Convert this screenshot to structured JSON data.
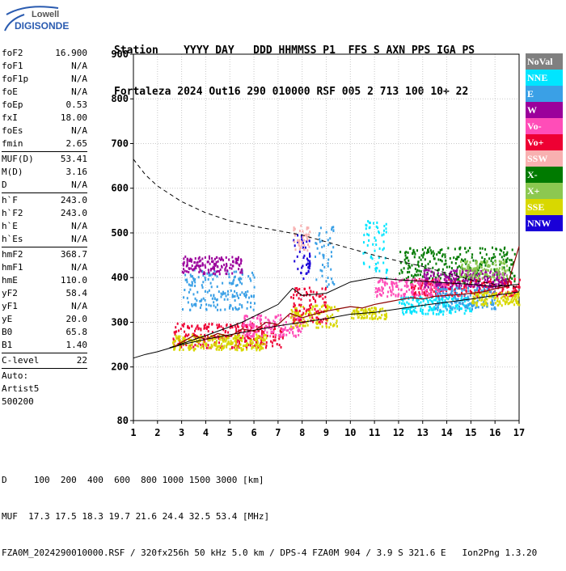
{
  "logo": {
    "line1": "Lowell",
    "line2": "DIGISONDE"
  },
  "header": {
    "row1": "Station    YYYY DAY   DDD HHMMSS P1  FFS S AXN PPS IGA PS",
    "row2": "Fortaleza 2024 Out16 290 010000 RSF 005 2 713 100 10+ 22"
  },
  "params": [
    {
      "k": "foF2",
      "v": "16.900"
    },
    {
      "k": "foF1",
      "v": "N/A"
    },
    {
      "k": "foF1p",
      "v": "N/A"
    },
    {
      "k": "foE",
      "v": "N/A"
    },
    {
      "k": "foEp",
      "v": "0.53"
    },
    {
      "k": "fxI",
      "v": "18.00"
    },
    {
      "k": "foEs",
      "v": "N/A"
    },
    {
      "k": "fmin",
      "v": "2.65"
    },
    {
      "sep": true
    },
    {
      "k": "MUF(D)",
      "v": "53.41"
    },
    {
      "k": "M(D)",
      "v": "3.16"
    },
    {
      "k": "D",
      "v": "N/A"
    },
    {
      "sep": true
    },
    {
      "k": "h`F",
      "v": "243.0"
    },
    {
      "k": "h`F2",
      "v": "243.0"
    },
    {
      "k": "h`E",
      "v": "N/A"
    },
    {
      "k": "h`Es",
      "v": "N/A"
    },
    {
      "sep": true
    },
    {
      "k": "hmF2",
      "v": "368.7"
    },
    {
      "k": "hmF1",
      "v": "N/A"
    },
    {
      "k": "hmE",
      "v": "110.0"
    },
    {
      "k": "yF2",
      "v": "58.4"
    },
    {
      "k": "yF1",
      "v": "N/A"
    },
    {
      "k": "yE",
      "v": "20.0"
    },
    {
      "k": "B0",
      "v": "65.8"
    },
    {
      "k": "B1",
      "v": "1.40"
    },
    {
      "sep": true
    },
    {
      "k": "C-level",
      "v": "22"
    },
    {
      "sep": true
    },
    {
      "plain": "Auto:"
    },
    {
      "plain": "Artist5"
    },
    {
      "plain": "500200"
    }
  ],
  "legend": [
    {
      "label": "NoVal",
      "color": "#808080"
    },
    {
      "label": "NNE",
      "color": "#00e5ff"
    },
    {
      "label": "E",
      "color": "#3aa0e6"
    },
    {
      "label": "W",
      "color": "#9b009b"
    },
    {
      "label": "Vo-",
      "color": "#ff4db8"
    },
    {
      "label": "Vo+",
      "color": "#ee0033"
    },
    {
      "label": "SSW",
      "color": "#f8b0b0"
    },
    {
      "label": "X-",
      "color": "#007a00"
    },
    {
      "label": "X+",
      "color": "#8cc850"
    },
    {
      "label": "SSE",
      "color": "#d8d800"
    },
    {
      "label": "NNW",
      "color": "#1a00d8"
    }
  ],
  "footer": {
    "line1": "D     100  200  400  600  800 1000 1500 3000 [km]",
    "line2": "MUF  17.3 17.5 18.3 19.7 21.6 24.4 32.5 53.4 [MHz]",
    "line3": "FZA0M_2024290010000.RSF / 320fx256h 50 kHz 5.0 km / DPS-4 FZA0M 904 / 3.9 S 321.6 E   Ion2Png 1.3.20"
  },
  "chart_data": {
    "type": "scatter",
    "xlim": [
      1,
      17
    ],
    "ylim": [
      80,
      900
    ],
    "x_ticks": [
      1,
      2,
      3,
      4,
      5,
      6,
      7,
      8,
      9,
      10,
      11,
      12,
      13,
      14,
      15,
      16,
      17
    ],
    "y_ticks": [
      80,
      200,
      300,
      400,
      500,
      600,
      700,
      800,
      900
    ],
    "grid": true,
    "lines": {
      "dashed": [
        [
          1,
          665
        ],
        [
          1.5,
          630
        ],
        [
          2,
          605
        ],
        [
          3,
          570
        ],
        [
          4,
          545
        ],
        [
          5,
          527
        ],
        [
          6,
          515
        ],
        [
          7,
          505
        ],
        [
          8,
          495
        ],
        [
          9,
          480
        ],
        [
          10,
          465
        ],
        [
          11,
          450
        ],
        [
          12,
          437
        ],
        [
          13,
          425
        ],
        [
          14,
          410
        ],
        [
          15,
          395
        ],
        [
          16,
          385
        ],
        [
          17,
          378
        ]
      ],
      "lower": [
        [
          1,
          220
        ],
        [
          1.5,
          228
        ],
        [
          2,
          234
        ],
        [
          2.5,
          242
        ],
        [
          3,
          250
        ],
        [
          4,
          262
        ],
        [
          5,
          272
        ],
        [
          6,
          282
        ],
        [
          7,
          292
        ],
        [
          8,
          300
        ],
        [
          9,
          308
        ],
        [
          10,
          318
        ],
        [
          11,
          322
        ],
        [
          12,
          330
        ],
        [
          13,
          338
        ],
        [
          14,
          345
        ],
        [
          15,
          352
        ],
        [
          16,
          360
        ],
        [
          17,
          368
        ]
      ],
      "upper": [
        [
          2.5,
          243
        ],
        [
          4,
          270
        ],
        [
          5.5,
          300
        ],
        [
          7,
          340
        ],
        [
          7.6,
          376
        ],
        [
          8,
          360
        ],
        [
          9,
          365
        ],
        [
          10,
          390
        ],
        [
          11,
          400
        ],
        [
          12,
          395
        ],
        [
          13,
          392
        ],
        [
          14,
          388
        ],
        [
          15,
          385
        ],
        [
          16,
          380
        ],
        [
          17,
          385
        ]
      ],
      "trace": [
        [
          2.7,
          245
        ],
        [
          3,
          255
        ],
        [
          3.5,
          270
        ],
        [
          4,
          262
        ],
        [
          4.5,
          275
        ],
        [
          5,
          268
        ],
        [
          5.5,
          285
        ],
        [
          6,
          280
        ],
        [
          6.5,
          300
        ],
        [
          7,
          295
        ],
        [
          7.5,
          320
        ],
        [
          8,
          310
        ],
        [
          8.5,
          318
        ],
        [
          9,
          325
        ],
        [
          9.5,
          330
        ],
        [
          10,
          335
        ],
        [
          10.5,
          332
        ],
        [
          11,
          340
        ],
        [
          11.5,
          345
        ],
        [
          12,
          350
        ],
        [
          12.5,
          355
        ],
        [
          13,
          352
        ],
        [
          13.5,
          358
        ],
        [
          14,
          360
        ],
        [
          14.5,
          362
        ],
        [
          15,
          365
        ],
        [
          15.5,
          368
        ],
        [
          16,
          375
        ],
        [
          16.5,
          380
        ],
        [
          17,
          470
        ]
      ]
    },
    "clusters": [
      {
        "color": "#ee0033",
        "x": [
          2.6,
          7.2
        ],
        "y": [
          245,
          300
        ]
      },
      {
        "color": "#d8d800",
        "x": [
          2.6,
          6.5
        ],
        "y": [
          240,
          275
        ]
      },
      {
        "color": "#ff4db8",
        "x": [
          5.5,
          8.0
        ],
        "y": [
          270,
          320
        ]
      },
      {
        "color": "#3aa0e6",
        "x": [
          3.0,
          6.0
        ],
        "y": [
          330,
          420
        ]
      },
      {
        "color": "#9b009b",
        "x": [
          3.0,
          5.5
        ],
        "y": [
          410,
          450
        ]
      },
      {
        "color": "#d8d800",
        "x": [
          7.5,
          9.5
        ],
        "y": [
          290,
          340
        ]
      },
      {
        "color": "#ee0033",
        "x": [
          7.5,
          9.0
        ],
        "y": [
          300,
          380
        ]
      },
      {
        "color": "#1a00d8",
        "x": [
          7.6,
          8.3
        ],
        "y": [
          400,
          500
        ]
      },
      {
        "color": "#f8b0b0",
        "x": [
          7.6,
          8.3
        ],
        "y": [
          460,
          520
        ]
      },
      {
        "color": "#3aa0e6",
        "x": [
          8.5,
          9.3
        ],
        "y": [
          380,
          520
        ]
      },
      {
        "color": "#00e5ff",
        "x": [
          10.5,
          11.5
        ],
        "y": [
          400,
          530
        ]
      },
      {
        "color": "#d8d800",
        "x": [
          10.0,
          11.5
        ],
        "y": [
          310,
          335
        ]
      },
      {
        "color": "#00e5ff",
        "x": [
          12.0,
          15.0
        ],
        "y": [
          320,
          360
        ]
      },
      {
        "color": "#007a00",
        "x": [
          12.0,
          16.8
        ],
        "y": [
          390,
          470
        ]
      },
      {
        "color": "#ee0033",
        "x": [
          12.5,
          17.0
        ],
        "y": [
          360,
          400
        ]
      },
      {
        "color": "#ff4db8",
        "x": [
          11.0,
          14.0
        ],
        "y": [
          360,
          400
        ]
      },
      {
        "color": "#9b009b",
        "x": [
          13.0,
          16.5
        ],
        "y": [
          380,
          420
        ]
      },
      {
        "color": "#3aa0e6",
        "x": [
          13.5,
          16.0
        ],
        "y": [
          330,
          380
        ]
      },
      {
        "color": "#8cc850",
        "x": [
          14.5,
          16.5
        ],
        "y": [
          400,
          440
        ]
      },
      {
        "color": "#d8d800",
        "x": [
          15.0,
          17.0
        ],
        "y": [
          340,
          370
        ]
      }
    ]
  }
}
